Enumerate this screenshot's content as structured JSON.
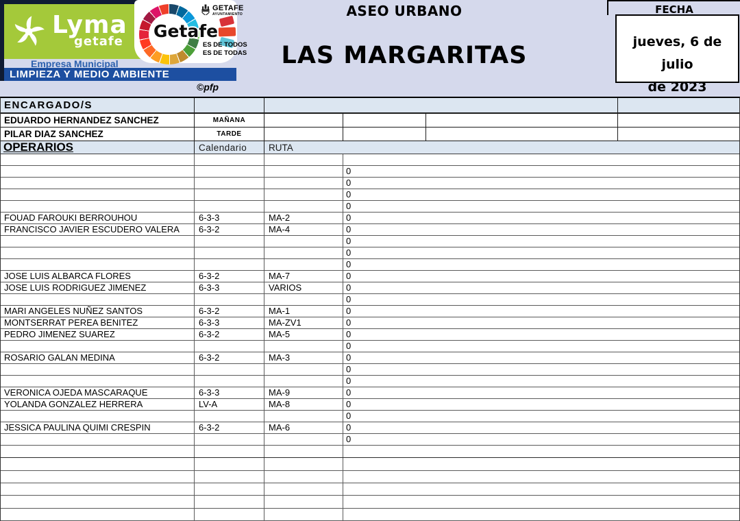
{
  "brand": {
    "lyma_name": "Lyma",
    "lyma_city": "getafe",
    "empresa_line": "Empresa Municipal",
    "department_bar": "LIMPIEZA Y MEDIO AMBIENTE",
    "getafe_wordmark": "Getafe",
    "ayuntamiento_name": "GETAFE",
    "ayuntamiento_sub": "AYUNTAMIENTO",
    "slogan_line1": "ES DE TODOS",
    "slogan_line2": "ES DE TODAS",
    "credit": "©pfp",
    "lyma_green": "#a4c93a",
    "bar_blue": "#1d4fa1",
    "navy": "#0f1b33",
    "sdg_colors": [
      "#19486a",
      "#00689d",
      "#0a97d9",
      "#26bde2",
      "#56c02b",
      "#3f7e44",
      "#4c9f38",
      "#bf8b2e",
      "#dda63a",
      "#fcc30b",
      "#fd9d24",
      "#fd6925",
      "#ff3a21",
      "#e5243b",
      "#c5192d",
      "#a21942",
      "#dd1367",
      "#ef402b"
    ]
  },
  "header": {
    "service_title": "ASEO URBANO",
    "zone_title": "LAS MARGARITAS",
    "fecha_label": "FECHA",
    "fecha_line1": "jueves, 6 de julio",
    "fecha_line2": "de 2023"
  },
  "encargados": {
    "section_label": "ENCARGADO/S",
    "rows": [
      {
        "name": "EDUARDO HERNANDEZ SANCHEZ",
        "shift": "MAÑANA"
      },
      {
        "name": "PILAR DIAZ SANCHEZ",
        "shift": "TARDE"
      }
    ]
  },
  "operarios": {
    "section_label": "OPERARIOS",
    "calendario_header": "Calendario",
    "ruta_header": "RUTA",
    "rows": [
      {
        "name": "",
        "calendario": "",
        "ruta": "",
        "value": ""
      },
      {
        "name": "",
        "calendario": "",
        "ruta": "",
        "value": "0"
      },
      {
        "name": "",
        "calendario": "",
        "ruta": "",
        "value": "0"
      },
      {
        "name": "",
        "calendario": "",
        "ruta": "",
        "value": "0"
      },
      {
        "name": "",
        "calendario": "",
        "ruta": "",
        "value": "0"
      },
      {
        "name": "FOUAD FAROUKI BERROUHOU",
        "calendario": "6-3-3",
        "ruta": "MA-2",
        "value": "0"
      },
      {
        "name": "FRANCISCO JAVIER ESCUDERO VALERA",
        "calendario": "6-3-2",
        "ruta": "MA-4",
        "value": "0"
      },
      {
        "name": "",
        "calendario": "",
        "ruta": "",
        "value": "0"
      },
      {
        "name": "",
        "calendario": "",
        "ruta": "",
        "value": "0"
      },
      {
        "name": "",
        "calendario": "",
        "ruta": "",
        "value": "0"
      },
      {
        "name": "JOSE LUIS ALBARCA FLORES",
        "calendario": "6-3-2",
        "ruta": "MA-7",
        "value": "0"
      },
      {
        "name": "JOSE LUIS RODRIGUEZ JIMENEZ",
        "calendario": "6-3-3",
        "ruta": "VARIOS",
        "value": "0"
      },
      {
        "name": "",
        "calendario": "",
        "ruta": "",
        "value": "0"
      },
      {
        "name": "MARI ANGELES NUÑEZ SANTOS",
        "calendario": "6-3-2",
        "ruta": "MA-1",
        "value": "0"
      },
      {
        "name": "MONTSERRAT PEREA BENITEZ",
        "calendario": "6-3-3",
        "ruta": "MA-ZV1",
        "value": "0"
      },
      {
        "name": "PEDRO JIMENEZ SUAREZ",
        "calendario": "6-3-2",
        "ruta": "MA-5",
        "value": "0"
      },
      {
        "name": "",
        "calendario": "",
        "ruta": "",
        "value": "0"
      },
      {
        "name": "ROSARIO GALAN MEDINA",
        "calendario": "6-3-2",
        "ruta": "MA-3",
        "value": "0"
      },
      {
        "name": "",
        "calendario": "",
        "ruta": "",
        "value": "0"
      },
      {
        "name": "",
        "calendario": "",
        "ruta": "",
        "value": "0"
      },
      {
        "name": "VERONICA OJEDA MASCARAQUE",
        "calendario": "6-3-3",
        "ruta": "MA-9",
        "value": "0"
      },
      {
        "name": "YOLANDA GONZALEZ HERRERA",
        "calendario": "LV-A",
        "ruta": "MA-8",
        "value": "0"
      },
      {
        "name": "",
        "calendario": "",
        "ruta": "",
        "value": "0"
      },
      {
        "name": "JESSICA PAULINA QUIMI CRESPIN",
        "calendario": "6-3-2",
        "ruta": "MA-6",
        "value": "0"
      },
      {
        "name": "",
        "calendario": "",
        "ruta": "",
        "value": "0"
      }
    ],
    "trailing_empty_rows": 6
  },
  "colors": {
    "band_bg": "#d5d9ec",
    "section_header_bg": "#dce6f1",
    "grid_line": "#5a5a5a",
    "strong_line": "#1c1c1c"
  }
}
